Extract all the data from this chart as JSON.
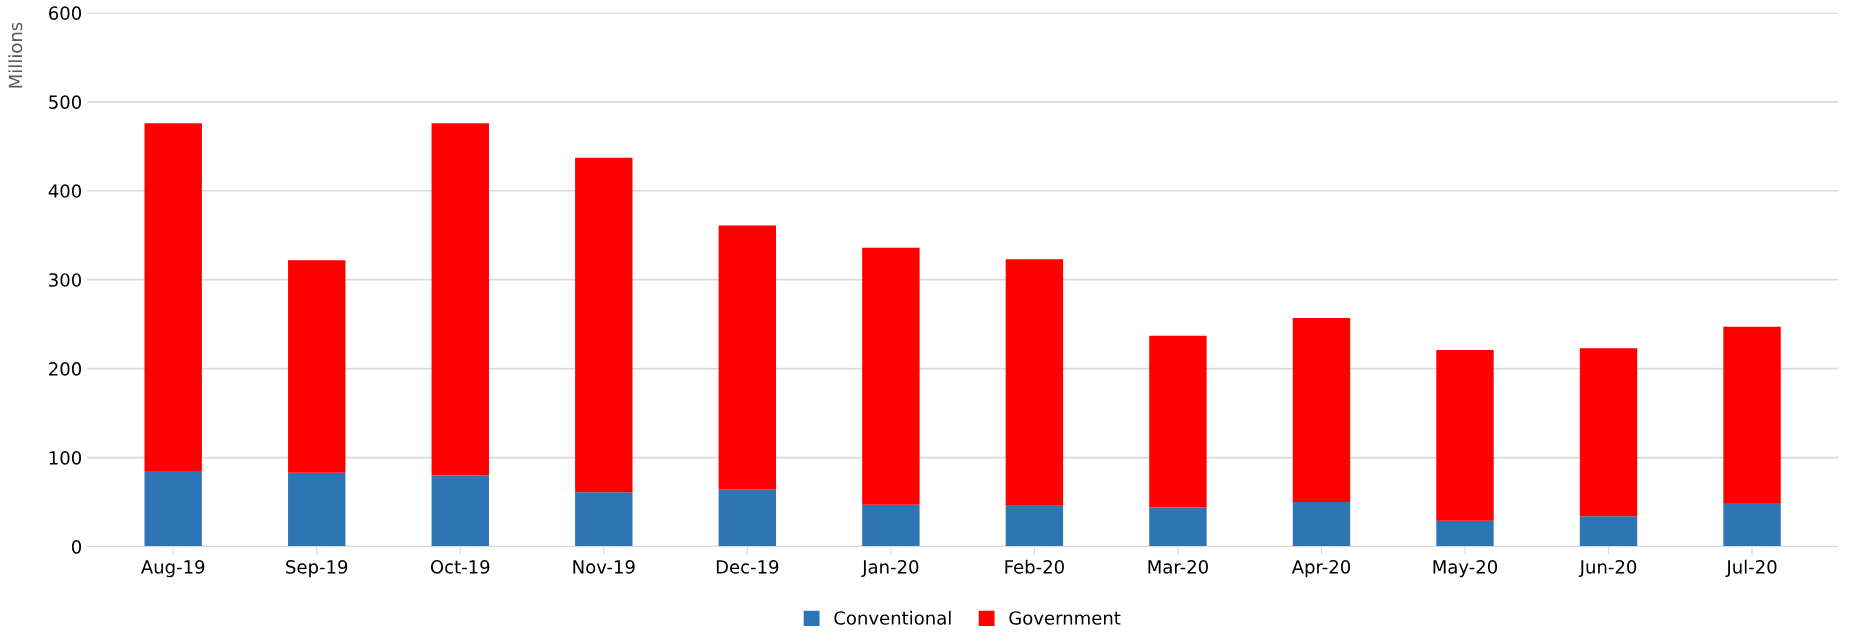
{
  "chart_data": {
    "type": "bar",
    "stacked": true,
    "ylabel": "Millions",
    "categories": [
      "Aug-19",
      "Sep-19",
      "Oct-19",
      "Nov-19",
      "Dec-19",
      "Jan-20",
      "Feb-20",
      "Mar-20",
      "Apr-20",
      "May-20",
      "Jun-20",
      "Jul-20"
    ],
    "series": [
      {
        "name": "Conventional",
        "color": "#2e75b6",
        "values": [
          85,
          83,
          80,
          61,
          64,
          47,
          46,
          44,
          50,
          29,
          34,
          49
        ]
      },
      {
        "name": "Government",
        "color": "#ff0000",
        "values": [
          391,
          239,
          396,
          376,
          297,
          289,
          277,
          193,
          207,
          192,
          189,
          198
        ]
      }
    ],
    "ylim": [
      0,
      600
    ],
    "yticks": [
      0,
      100,
      200,
      300,
      400,
      500,
      600
    ],
    "grid": "y",
    "legend": "bottom"
  }
}
